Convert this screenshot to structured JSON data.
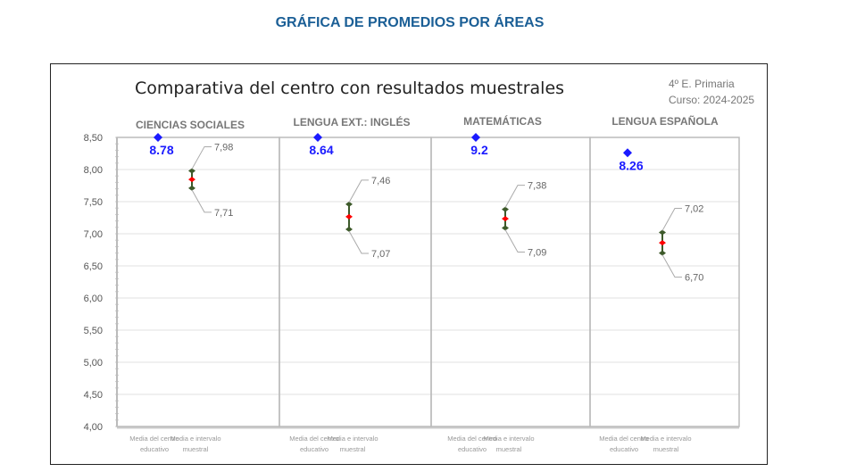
{
  "page_title": "GRÁFICA DE PROMEDIOS POR ÁREAS",
  "chart_data": {
    "type": "scatter",
    "title": "Comparativa del centro con resultados muestrales",
    "subtitle_lines": [
      "4º E. Primaria",
      "Curso: 2024-2025"
    ],
    "ylim": [
      4.0,
      8.5
    ],
    "yticks": [
      "4,00",
      "4,50",
      "5,00",
      "5,50",
      "6,00",
      "6,50",
      "7,00",
      "7,50",
      "8,00",
      "8,50"
    ],
    "x_categories": [
      "Media del centro educativo",
      "Media e intervalo muestral"
    ],
    "x_category_lines": [
      [
        "Media del centro",
        "educativo"
      ],
      [
        "Media e intervalo",
        "muestral"
      ]
    ],
    "grid": true,
    "panels": [
      {
        "area": "CIENCIAS SOCIALES",
        "centro": 8.78,
        "centro_label": "8.78",
        "low": 7.71,
        "high": 7.98,
        "mean": 7.845,
        "low_label": "7,71",
        "high_label": "7,98"
      },
      {
        "area": "LENGUA EXT.: INGLÉS",
        "centro": 8.64,
        "centro_label": "8.64",
        "low": 7.07,
        "high": 7.46,
        "mean": 7.265,
        "low_label": "7,07",
        "high_label": "7,46"
      },
      {
        "area": "MATEMÁTICAS",
        "centro": 9.2,
        "centro_label": "9.2",
        "low": 7.09,
        "high": 7.38,
        "mean": 7.235,
        "low_label": "7,09",
        "high_label": "7,38"
      },
      {
        "area": "LENGUA ESPAÑOLA",
        "centro": 8.26,
        "centro_label": "8.26",
        "low": 6.7,
        "high": 7.02,
        "mean": 6.86,
        "low_label": "6,70",
        "high_label": "7,02"
      }
    ],
    "colors": {
      "centro": "#1a1aff",
      "interval": "#3d5a2a",
      "mean": "#ff0000",
      "grid": "#e0e0e0",
      "panel": "#bbbbbb"
    }
  }
}
